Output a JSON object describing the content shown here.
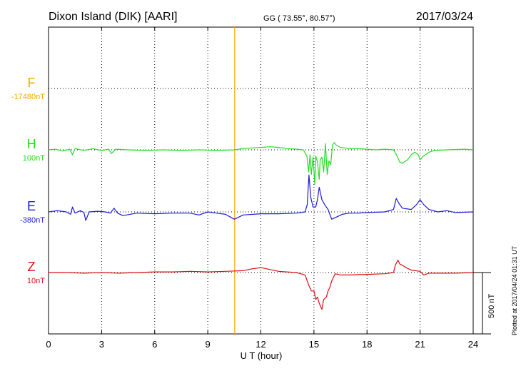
{
  "header": {
    "station": "Dixon Island (DIK)  [AARI]",
    "coords": "GG ( 73.55°,  80.57°)",
    "date": "2017/03/24"
  },
  "side_note": "Plotted at 2017/04/24 01:31  UT",
  "scale_label": "500 nT",
  "chart_data": {
    "type": "line",
    "xlabel": "U T (hour)",
    "xlim": [
      0,
      24
    ],
    "xticks": [
      "0",
      "3",
      "6",
      "9",
      "12",
      "15",
      "18",
      "21",
      "24"
    ],
    "grid": true,
    "series": [
      {
        "name": "F",
        "baseline": "-17480nT",
        "color": "#f5a800",
        "points": [
          [
            10.52,
            -3300
          ],
          [
            10.52,
            3300
          ]
        ]
      },
      {
        "name": "H",
        "baseline": "100nT",
        "color": "#22dd22",
        "points": [
          [
            0,
            0
          ],
          [
            0.4,
            5
          ],
          [
            0.8,
            -10
          ],
          [
            1.2,
            5
          ],
          [
            1.35,
            -40
          ],
          [
            1.5,
            10
          ],
          [
            2.0,
            -5
          ],
          [
            2.5,
            10
          ],
          [
            3.0,
            -5
          ],
          [
            3.4,
            5
          ],
          [
            3.55,
            -30
          ],
          [
            3.8,
            5
          ],
          [
            4.5,
            0
          ],
          [
            5.5,
            -5
          ],
          [
            6.5,
            0
          ],
          [
            7.5,
            -5
          ],
          [
            8.5,
            0
          ],
          [
            9.5,
            -5
          ],
          [
            10.5,
            0
          ],
          [
            11.0,
            10
          ],
          [
            11.5,
            15
          ],
          [
            12.0,
            20
          ],
          [
            12.5,
            25
          ],
          [
            13.0,
            20
          ],
          [
            13.5,
            10
          ],
          [
            14.0,
            5
          ],
          [
            14.4,
            0
          ],
          [
            14.6,
            -50
          ],
          [
            14.7,
            -180
          ],
          [
            14.78,
            -40
          ],
          [
            14.85,
            -200
          ],
          [
            14.95,
            -60
          ],
          [
            15.05,
            -280
          ],
          [
            15.1,
            -50
          ],
          [
            15.2,
            -100
          ],
          [
            15.3,
            -240
          ],
          [
            15.35,
            -80
          ],
          [
            15.45,
            -60
          ],
          [
            15.55,
            -180
          ],
          [
            15.65,
            50
          ],
          [
            15.75,
            -200
          ],
          [
            15.85,
            -90
          ],
          [
            15.95,
            -120
          ],
          [
            16.05,
            40
          ],
          [
            16.15,
            60
          ],
          [
            16.25,
            40
          ],
          [
            16.5,
            20
          ],
          [
            17.0,
            10
          ],
          [
            17.5,
            10
          ],
          [
            18.0,
            5
          ],
          [
            18.5,
            0
          ],
          [
            19.0,
            5
          ],
          [
            19.5,
            0
          ],
          [
            19.7,
            -50
          ],
          [
            19.85,
            -100
          ],
          [
            20.0,
            -110
          ],
          [
            20.3,
            -80
          ],
          [
            20.5,
            -40
          ],
          [
            20.7,
            -20
          ],
          [
            20.9,
            -40
          ],
          [
            21.0,
            -80
          ],
          [
            21.2,
            -50
          ],
          [
            21.5,
            -20
          ],
          [
            21.8,
            -5
          ],
          [
            22.5,
            0
          ],
          [
            23.5,
            5
          ],
          [
            24.0,
            0
          ]
        ]
      },
      {
        "name": "E",
        "baseline": "-380nT",
        "color": "#1a1adb",
        "points": [
          [
            0,
            0
          ],
          [
            0.5,
            10
          ],
          [
            1.0,
            0
          ],
          [
            1.25,
            -20
          ],
          [
            1.35,
            40
          ],
          [
            1.5,
            -10
          ],
          [
            1.8,
            10
          ],
          [
            2.0,
            -5
          ],
          [
            2.1,
            -70
          ],
          [
            2.3,
            0
          ],
          [
            2.8,
            5
          ],
          [
            3.2,
            0
          ],
          [
            3.5,
            -10
          ],
          [
            3.7,
            30
          ],
          [
            3.9,
            -10
          ],
          [
            4.2,
            -30
          ],
          [
            5.0,
            -10
          ],
          [
            6.0,
            -15
          ],
          [
            7.0,
            -10
          ],
          [
            8.0,
            -10
          ],
          [
            8.5,
            -25
          ],
          [
            9.0,
            0
          ],
          [
            9.5,
            -10
          ],
          [
            10.0,
            -20
          ],
          [
            10.5,
            -60
          ],
          [
            11.0,
            -25
          ],
          [
            12.0,
            -15
          ],
          [
            13.0,
            -15
          ],
          [
            14.0,
            -10
          ],
          [
            14.5,
            0
          ],
          [
            14.62,
            60
          ],
          [
            14.72,
            300
          ],
          [
            14.82,
            120
          ],
          [
            14.95,
            40
          ],
          [
            15.1,
            40
          ],
          [
            15.2,
            100
          ],
          [
            15.3,
            200
          ],
          [
            15.45,
            100
          ],
          [
            15.6,
            60
          ],
          [
            15.8,
            20
          ],
          [
            16.0,
            -60
          ],
          [
            16.3,
            -40
          ],
          [
            16.6,
            -20
          ],
          [
            17.0,
            -10
          ],
          [
            17.5,
            -10
          ],
          [
            18.0,
            -5
          ],
          [
            19.0,
            0
          ],
          [
            19.5,
            20
          ],
          [
            19.65,
            110
          ],
          [
            19.8,
            70
          ],
          [
            20.0,
            30
          ],
          [
            20.5,
            20
          ],
          [
            20.8,
            60
          ],
          [
            21.0,
            100
          ],
          [
            21.2,
            60
          ],
          [
            21.5,
            20
          ],
          [
            22.0,
            0
          ],
          [
            22.5,
            10
          ],
          [
            23.0,
            -5
          ],
          [
            24.0,
            0
          ]
        ]
      },
      {
        "name": "Z",
        "baseline": "10nT",
        "color": "#dd1010",
        "points": [
          [
            0,
            0
          ],
          [
            1.0,
            0
          ],
          [
            2.0,
            -5
          ],
          [
            3.0,
            0
          ],
          [
            4.0,
            -5
          ],
          [
            5.0,
            0
          ],
          [
            6.0,
            5
          ],
          [
            7.0,
            5
          ],
          [
            8.0,
            10
          ],
          [
            9.0,
            5
          ],
          [
            10.0,
            10
          ],
          [
            11.0,
            15
          ],
          [
            11.5,
            30
          ],
          [
            12.0,
            40
          ],
          [
            12.5,
            25
          ],
          [
            13.0,
            10
          ],
          [
            14.0,
            0
          ],
          [
            14.5,
            -20
          ],
          [
            14.7,
            -100
          ],
          [
            14.85,
            -150
          ],
          [
            15.0,
            -150
          ],
          [
            15.1,
            -220
          ],
          [
            15.2,
            -200
          ],
          [
            15.3,
            -250
          ],
          [
            15.45,
            -300
          ],
          [
            15.55,
            -220
          ],
          [
            15.7,
            -200
          ],
          [
            15.8,
            -150
          ],
          [
            15.9,
            -120
          ],
          [
            16.0,
            -70
          ],
          [
            16.2,
            -10
          ],
          [
            16.5,
            -20
          ],
          [
            17.0,
            -20
          ],
          [
            18.0,
            -15
          ],
          [
            19.0,
            -10
          ],
          [
            19.5,
            0
          ],
          [
            19.6,
            60
          ],
          [
            19.75,
            100
          ],
          [
            19.85,
            70
          ],
          [
            20.0,
            60
          ],
          [
            20.2,
            40
          ],
          [
            20.5,
            20
          ],
          [
            21.0,
            10
          ],
          [
            21.2,
            -20
          ],
          [
            21.5,
            -5
          ],
          [
            22.0,
            -5
          ],
          [
            23.0,
            -5
          ],
          [
            24.0,
            0
          ]
        ]
      }
    ]
  }
}
